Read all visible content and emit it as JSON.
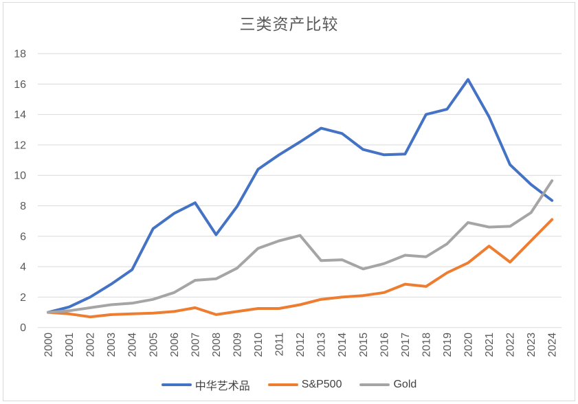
{
  "chart_data": {
    "type": "line",
    "title": "三类资产比较",
    "xlabel": "",
    "ylabel": "",
    "x": [
      "2000",
      "2001",
      "2002",
      "2003",
      "2004",
      "2005",
      "2006",
      "2007",
      "2008",
      "2009",
      "2010",
      "2011",
      "2012",
      "2013",
      "2014",
      "2015",
      "2016",
      "2017",
      "2018",
      "2019",
      "2020",
      "2021",
      "2022",
      "2023",
      "2024"
    ],
    "ylim": [
      0,
      18
    ],
    "ytick_interval": 2,
    "grid": true,
    "legend_position": "bottom",
    "gridline_color": "#d9d9d9",
    "tick_label_color": "#595959",
    "legend_text_color": "#404040",
    "series": [
      {
        "name": "中华艺术品",
        "color": "#4472C4",
        "values": [
          1.0,
          1.35,
          2.0,
          2.85,
          3.8,
          6.5,
          7.5,
          8.2,
          6.1,
          7.95,
          10.4,
          11.35,
          12.2,
          13.1,
          12.75,
          11.7,
          11.35,
          11.4,
          14.0,
          14.35,
          16.3,
          13.85,
          10.7,
          9.4,
          8.35
        ]
      },
      {
        "name": "S&P500",
        "color": "#ED7D31",
        "values": [
          1.0,
          0.9,
          0.7,
          0.85,
          0.9,
          0.95,
          1.05,
          1.3,
          0.85,
          1.05,
          1.25,
          1.25,
          1.5,
          1.85,
          2.0,
          2.1,
          2.3,
          2.85,
          2.7,
          3.6,
          4.25,
          5.35,
          4.3,
          5.7,
          7.1
        ]
      },
      {
        "name": "Gold",
        "color": "#A5A5A5",
        "values": [
          1.0,
          1.1,
          1.3,
          1.5,
          1.6,
          1.85,
          2.3,
          3.1,
          3.2,
          3.9,
          5.2,
          5.7,
          6.05,
          4.4,
          4.45,
          3.85,
          4.2,
          4.75,
          4.65,
          5.5,
          6.9,
          6.6,
          6.65,
          7.55,
          9.65
        ]
      }
    ]
  }
}
